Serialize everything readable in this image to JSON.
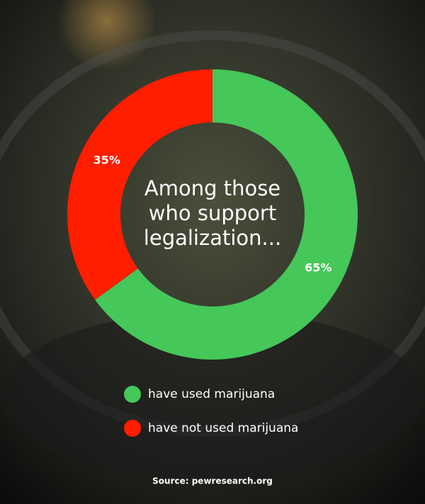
{
  "chart_data": {
    "type": "donut",
    "center_text": [
      "Among those",
      "who support",
      "legalization..."
    ],
    "categories": [
      "have used marijuana",
      "have not used marijuana"
    ],
    "values": [
      65,
      35
    ],
    "value_labels": [
      "65%",
      "35%"
    ],
    "colors": [
      "#45c75a",
      "#ff1e00"
    ],
    "source": "Source: pewresearch.org"
  }
}
